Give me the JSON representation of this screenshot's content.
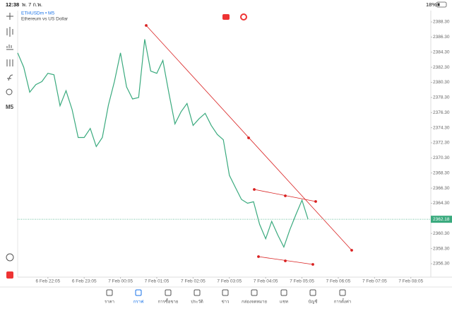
{
  "status_bar": {
    "time": "12:38",
    "date": "พ. 7 ก.พ.",
    "battery": "18%"
  },
  "toolbar": {
    "timeframe": "M5"
  },
  "chart_data": {
    "type": "line",
    "title": "ETHUSDm • M5",
    "subtitle": "Ethereum vs US Dollar",
    "color": "#3aaa7e",
    "x": [
      "6 Feb 21:15",
      "6 Feb 21:25",
      "6 Feb 21:35",
      "6 Feb 21:45",
      "6 Feb 21:55",
      "6 Feb 22:05",
      "6 Feb 22:15",
      "6 Feb 22:25",
      "6 Feb 22:35",
      "6 Feb 22:45",
      "6 Feb 22:55",
      "6 Feb 23:05",
      "6 Feb 23:15",
      "6 Feb 23:25",
      "6 Feb 23:35",
      "6 Feb 23:45",
      "6 Feb 23:55",
      "7 Feb 00:05",
      "7 Feb 00:15",
      "7 Feb 00:25",
      "7 Feb 00:35",
      "7 Feb 00:45",
      "7 Feb 00:55",
      "7 Feb 01:05",
      "7 Feb 01:15",
      "7 Feb 01:25",
      "7 Feb 01:35",
      "7 Feb 01:45",
      "7 Feb 01:55",
      "7 Feb 02:05",
      "7 Feb 02:15",
      "7 Feb 02:25",
      "7 Feb 02:35",
      "7 Feb 02:45",
      "7 Feb 02:55",
      "7 Feb 03:05",
      "7 Feb 03:15",
      "7 Feb 03:25",
      "7 Feb 03:35",
      "7 Feb 03:45",
      "7 Feb 03:55",
      "7 Feb 04:05",
      "7 Feb 04:15",
      "7 Feb 04:25",
      "7 Feb 04:35",
      "7 Feb 04:45",
      "7 Feb 04:55",
      "7 Feb 05:05",
      "7 Feb 05:15"
    ],
    "values": [
      2384.2,
      2382.3,
      2379.0,
      2380.0,
      2380.4,
      2381.5,
      2381.3,
      2377.2,
      2379.2,
      2376.7,
      2373.0,
      2373.0,
      2374.2,
      2371.8,
      2373.0,
      2377.3,
      2380.4,
      2384.2,
      2379.7,
      2378.1,
      2378.3,
      2386.0,
      2381.8,
      2381.5,
      2383.2,
      2378.9,
      2374.8,
      2376.4,
      2377.5,
      2374.6,
      2375.5,
      2376.2,
      2374.6,
      2373.4,
      2372.7,
      2368.0,
      2366.4,
      2364.8,
      2364.3,
      2364.5,
      2361.5,
      2359.6,
      2361.9,
      2360.1,
      2358.5,
      2360.8,
      2362.8,
      2364.7,
      2362.2
    ],
    "xlim": [
      "6 Feb 21:15",
      "7 Feb 08:38"
    ],
    "xticks": [
      "6 Feb 22:05",
      "6 Feb 23:05",
      "7 Feb 00:05",
      "7 Feb 01:05",
      "7 Feb 02:05",
      "7 Feb 03:05",
      "7 Feb 04:05",
      "7 Feb 05:05",
      "7 Feb 06:05",
      "7 Feb 07:05",
      "7 Feb 08:05"
    ],
    "ylim": [
      2354.52,
      2389.8
    ],
    "yticks": [
      {
        "value": 2388.3,
        "label": "2388.30"
      },
      {
        "value": 2386.3,
        "label": "2386.30"
      },
      {
        "value": 2384.3,
        "label": "2384.30"
      },
      {
        "value": 2382.3,
        "label": "2382.30"
      },
      {
        "value": 2380.3,
        "label": "2380.30"
      },
      {
        "value": 2378.3,
        "label": "2378.30"
      },
      {
        "value": 2376.3,
        "label": "2376.30"
      },
      {
        "value": 2374.3,
        "label": "2374.30"
      },
      {
        "value": 2372.3,
        "label": "2372.30"
      },
      {
        "value": 2370.3,
        "label": "2370.30"
      },
      {
        "value": 2368.3,
        "label": "2368.30"
      },
      {
        "value": 2366.3,
        "label": "2366.30"
      },
      {
        "value": 2364.3,
        "label": "2364.30"
      },
      {
        "value": 2360.3,
        "label": "2360.30"
      },
      {
        "value": 2358.3,
        "label": "2358.30"
      },
      {
        "value": 2356.3,
        "label": "2356.30"
      }
    ],
    "current_price": 2362.18
  },
  "tabs": [
    "ราคา",
    "กราฟ",
    "การซื้อขาย",
    "ประวัติ",
    "ข่าว",
    "กล่องจดหมาย",
    "แชท",
    "บัญชี",
    "การตั้งค่า"
  ]
}
